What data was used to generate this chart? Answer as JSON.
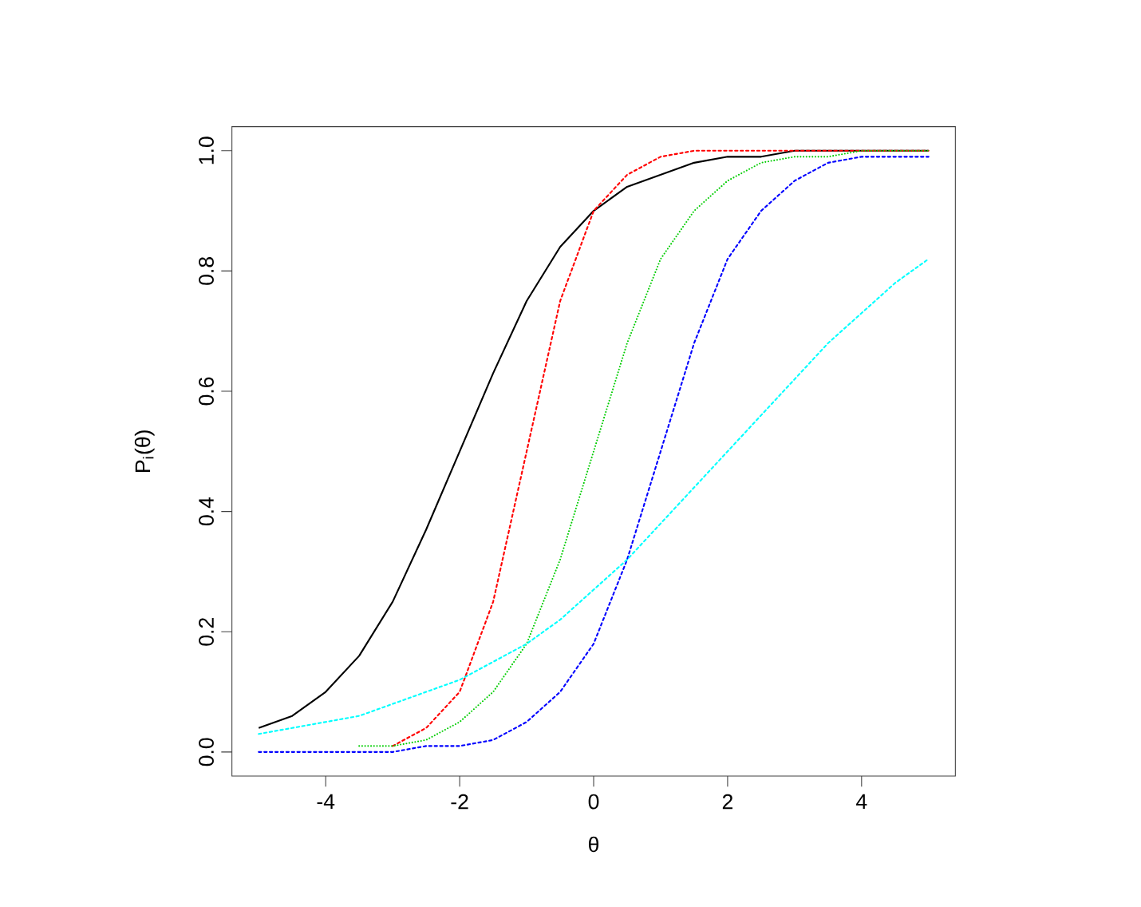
{
  "chart_data": {
    "type": "line",
    "xlabel": "θ",
    "ylabel": "P$_{i}$(θ)",
    "x": [
      -5,
      -4.5,
      -4,
      -3.5,
      -3,
      -2.5,
      -2,
      -1.5,
      -1,
      -0.5,
      0,
      0.5,
      1,
      1.5,
      2,
      2.5,
      3,
      3.5,
      4,
      4.5,
      5
    ],
    "xlim": [
      -5.4,
      5.4
    ],
    "xticks": [
      -4,
      -2,
      0,
      2,
      4
    ],
    "ylim": [
      -0.04,
      1.04
    ],
    "yticks": [
      {
        "value": 0,
        "label": "0.0"
      },
      0.2,
      0.4,
      0.6,
      0.8,
      {
        "value": 1,
        "label": "1.0"
      }
    ],
    "grid": false,
    "series": [
      {
        "color": "#000000",
        "line_style": "solid",
        "values": [
          0.04,
          0.06,
          0.1,
          0.16,
          0.25,
          0.37,
          0.5,
          0.63,
          0.75,
          0.84,
          0.9,
          0.94,
          0.96,
          0.98,
          0.99,
          0.99,
          1.0,
          1.0,
          1.0,
          1.0,
          1.0
        ]
      },
      {
        "color": "#ff0000",
        "line_style": "dashed",
        "values": [
          null,
          null,
          null,
          null,
          0.01,
          0.04,
          0.1,
          0.25,
          0.5,
          0.75,
          0.9,
          0.96,
          0.99,
          1.0,
          1.0,
          1.0,
          1.0,
          1.0,
          1.0,
          1.0,
          1.0
        ]
      },
      {
        "color": "#00cd00",
        "line_style": "dotted",
        "values": [
          null,
          null,
          null,
          0.01,
          0.01,
          0.02,
          0.05,
          0.1,
          0.18,
          0.32,
          0.5,
          0.68,
          0.82,
          0.9,
          0.95,
          0.98,
          0.99,
          0.99,
          1.0,
          1.0,
          1.0
        ]
      },
      {
        "color": "#0000ff",
        "line_style": "dashed",
        "values": [
          0.0,
          0.0,
          0.0,
          0.0,
          0.0,
          0.01,
          0.01,
          0.02,
          0.05,
          0.1,
          0.18,
          0.32,
          0.5,
          0.68,
          0.82,
          0.9,
          0.95,
          0.98,
          0.99,
          0.99,
          0.99
        ]
      },
      {
        "color": "#00ffff",
        "line_style": "dashed",
        "values": [
          0.03,
          0.04,
          0.05,
          0.06,
          0.08,
          0.1,
          0.12,
          0.15,
          0.18,
          0.22,
          0.27,
          0.32,
          0.38,
          0.44,
          0.5,
          0.56,
          0.62,
          0.68,
          0.73,
          0.78,
          0.82
        ]
      }
    ]
  }
}
